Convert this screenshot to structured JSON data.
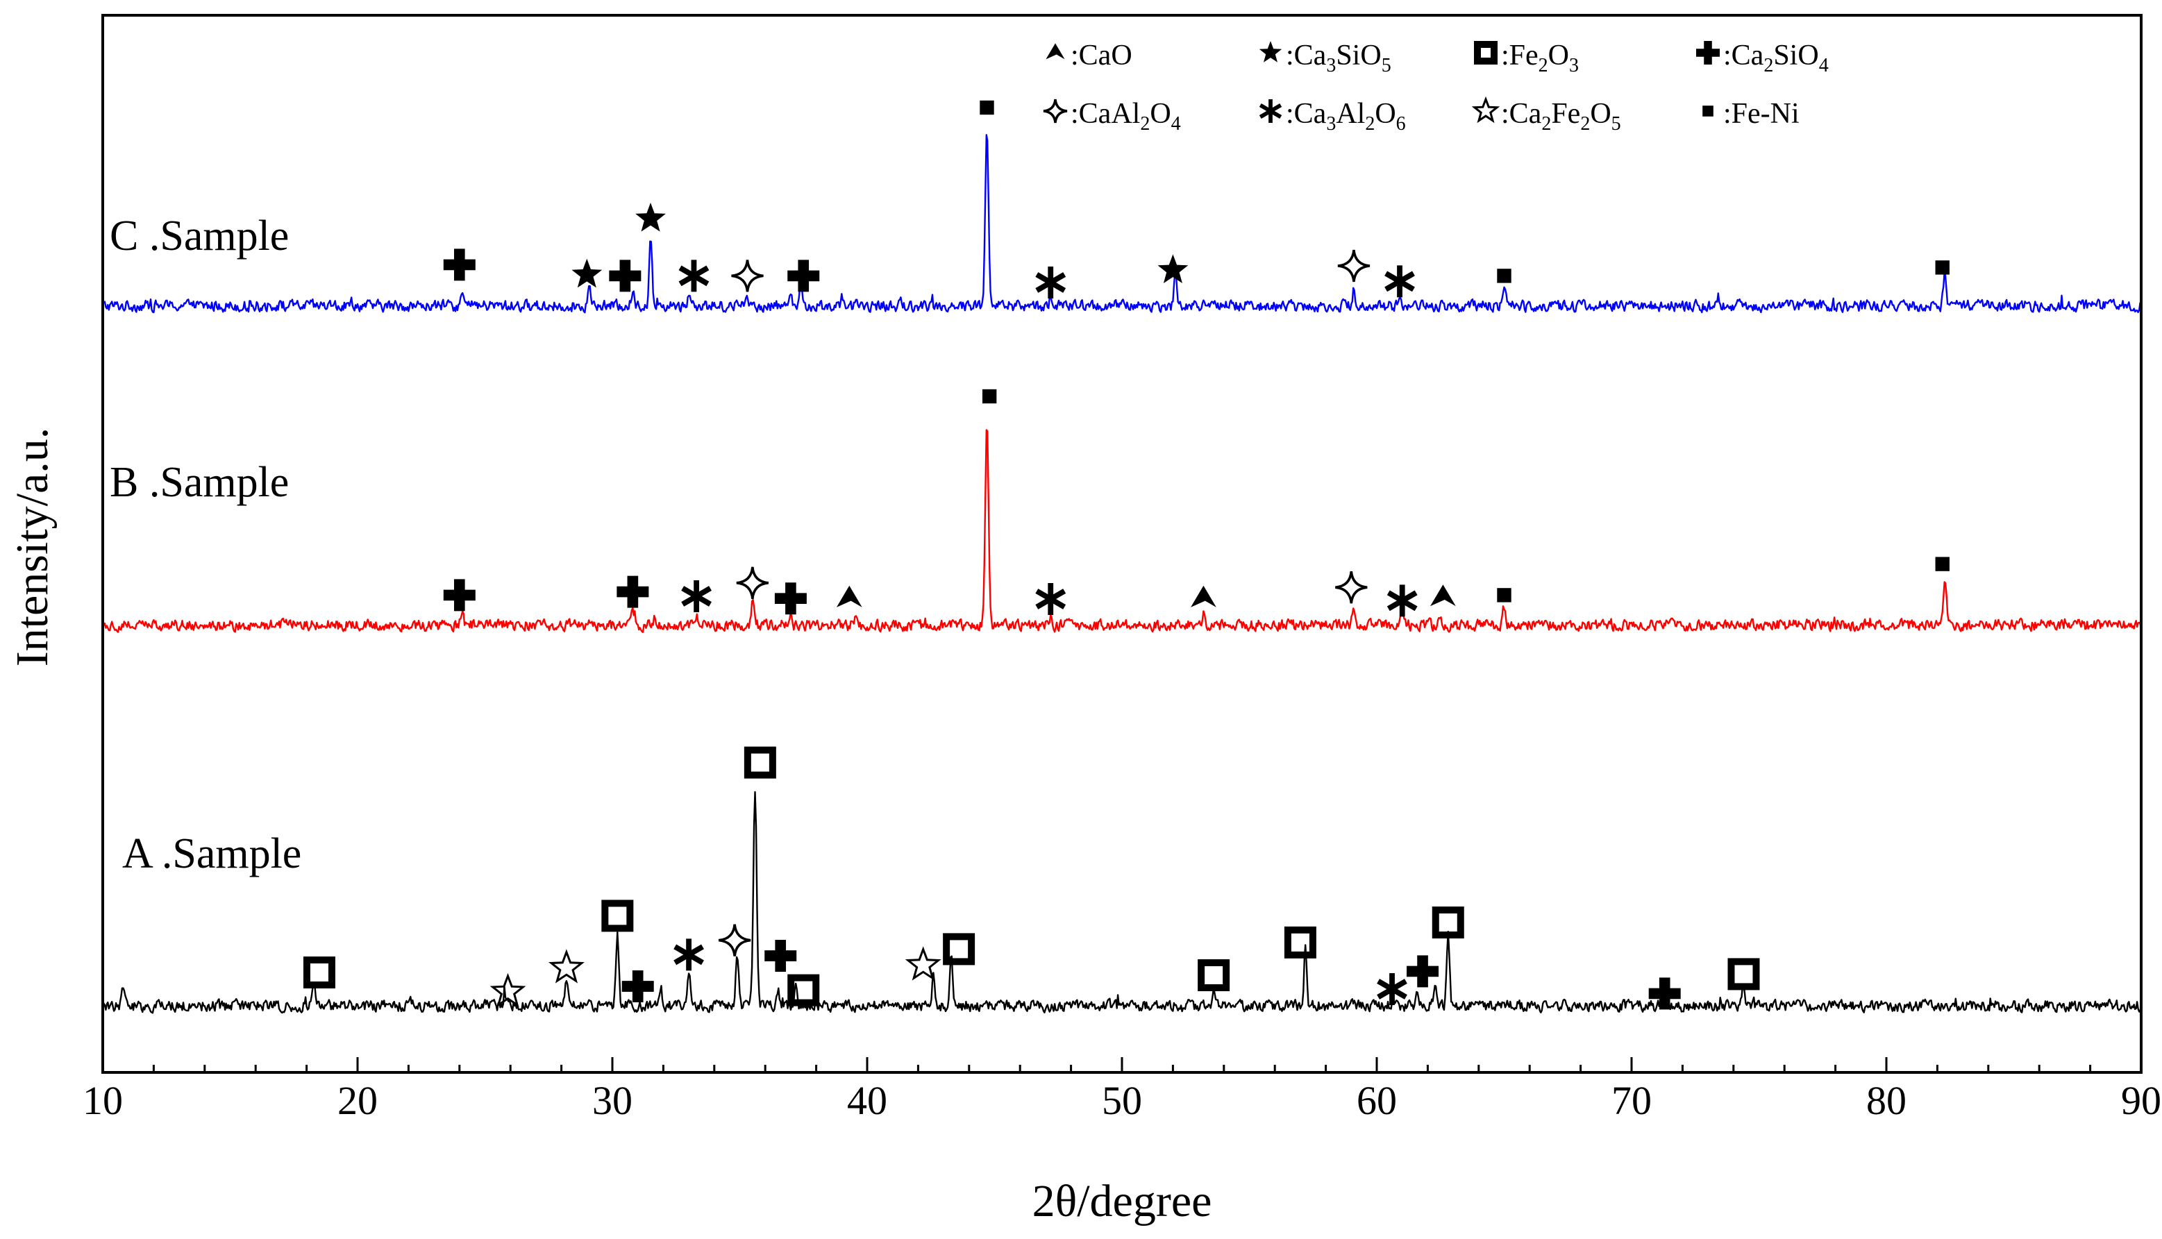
{
  "chart_data": {
    "type": "line",
    "title": "",
    "xlabel": "2θ/degree",
    "ylabel": "Intensity/a.u.",
    "xlim": [
      10,
      90
    ],
    "xticks": [
      10,
      20,
      30,
      40,
      50,
      60,
      70,
      80,
      90
    ],
    "yticks": [],
    "legend_position": "top-right",
    "legend": [
      {
        "marker": "cao",
        "label_parts": [
          ":CaO"
        ]
      },
      {
        "marker": "ca3sio5",
        "label_parts": [
          ":Ca",
          "3",
          "SiO",
          "5"
        ]
      },
      {
        "marker": "fe2o3",
        "label_parts": [
          ":Fe",
          "2",
          "O",
          "3"
        ]
      },
      {
        "marker": "ca2sio4",
        "label_parts": [
          ":Ca",
          "2",
          "SiO",
          "4"
        ]
      },
      {
        "marker": "caal2o4",
        "label_parts": [
          ":CaAl",
          "2",
          "O",
          "4"
        ]
      },
      {
        "marker": "ca3al2o6",
        "label_parts": [
          ":Ca",
          "3",
          "Al",
          "2",
          "O",
          "6"
        ]
      },
      {
        "marker": "ca2fe2o5",
        "label_parts": [
          ":Ca",
          "2",
          "Fe",
          "2",
          "O",
          "5"
        ]
      },
      {
        "marker": "feni",
        "label_parts": [
          ":Fe-Ni"
        ]
      }
    ],
    "series": [
      {
        "name": "C .Sample",
        "color": "#0000ff",
        "baseline": 0.18,
        "peaks": [
          [
            24.1,
            0.22
          ],
          [
            29.1,
            0.3
          ],
          [
            30.8,
            0.25
          ],
          [
            31.5,
            1.25
          ],
          [
            33.0,
            0.2
          ],
          [
            35.3,
            0.2
          ],
          [
            37.0,
            0.32
          ],
          [
            37.4,
            0.3
          ],
          [
            44.7,
            3.2
          ],
          [
            47.2,
            0.15
          ],
          [
            52.1,
            0.55
          ],
          [
            59.1,
            0.3
          ],
          [
            60.9,
            0.16
          ],
          [
            65.0,
            0.34
          ],
          [
            82.3,
            0.63
          ]
        ],
        "markers": [
          {
            "x": 24.0,
            "y": 0.92,
            "type": "ca2sio4"
          },
          {
            "x": 31.5,
            "y": 1.75,
            "type": "ca3sio5"
          },
          {
            "x": 29.0,
            "y": 0.74,
            "type": "ca3sio5"
          },
          {
            "x": 30.5,
            "y": 0.72,
            "type": "ca2sio4"
          },
          {
            "x": 33.2,
            "y": 0.72,
            "type": "ca3al2o6"
          },
          {
            "x": 35.3,
            "y": 0.72,
            "type": "caal2o4"
          },
          {
            "x": 37.5,
            "y": 0.72,
            "type": "ca2sio4"
          },
          {
            "x": 44.7,
            "y": 3.75,
            "type": "feni"
          },
          {
            "x": 47.2,
            "y": 0.6,
            "type": "ca3al2o6"
          },
          {
            "x": 52.0,
            "y": 0.82,
            "type": "ca3sio5"
          },
          {
            "x": 59.1,
            "y": 0.9,
            "type": "caal2o4"
          },
          {
            "x": 60.9,
            "y": 0.62,
            "type": "ca3al2o6"
          },
          {
            "x": 65.0,
            "y": 0.72,
            "type": "feni"
          },
          {
            "x": 82.2,
            "y": 0.87,
            "type": "feni"
          }
        ]
      },
      {
        "name": "B .Sample",
        "color": "#ff0000",
        "baseline": 0.18,
        "peaks": [
          [
            24.1,
            0.2
          ],
          [
            30.8,
            0.3
          ],
          [
            33.3,
            0.2
          ],
          [
            35.5,
            0.44
          ],
          [
            37.0,
            0.26
          ],
          [
            39.5,
            0.12
          ],
          [
            44.7,
            3.8
          ],
          [
            47.2,
            0.2
          ],
          [
            53.2,
            0.18
          ],
          [
            59.1,
            0.36
          ],
          [
            61.0,
            0.18
          ],
          [
            62.5,
            0.18
          ],
          [
            65.0,
            0.32
          ],
          [
            82.3,
            0.9
          ]
        ],
        "markers": [
          {
            "x": 24.0,
            "y": 0.72,
            "type": "ca2sio4"
          },
          {
            "x": 30.8,
            "y": 0.78,
            "type": "ca2sio4"
          },
          {
            "x": 33.3,
            "y": 0.7,
            "type": "ca3al2o6"
          },
          {
            "x": 35.5,
            "y": 0.94,
            "type": "caal2o4"
          },
          {
            "x": 37.0,
            "y": 0.66,
            "type": "ca2sio4"
          },
          {
            "x": 39.3,
            "y": 0.66,
            "type": "cao"
          },
          {
            "x": 44.8,
            "y": 4.3,
            "type": "feni"
          },
          {
            "x": 47.2,
            "y": 0.65,
            "type": "ca3al2o6"
          },
          {
            "x": 53.2,
            "y": 0.66,
            "type": "cao"
          },
          {
            "x": 59.0,
            "y": 0.86,
            "type": "caal2o4"
          },
          {
            "x": 61.0,
            "y": 0.62,
            "type": "ca3al2o6"
          },
          {
            "x": 62.6,
            "y": 0.68,
            "type": "cao"
          },
          {
            "x": 65.0,
            "y": 0.72,
            "type": "feni"
          },
          {
            "x": 82.2,
            "y": 1.28,
            "type": "feni"
          }
        ]
      },
      {
        "name": "A .Sample",
        "color": "#000000",
        "baseline": 0.2,
        "peaks": [
          [
            10.8,
            0.3
          ],
          [
            18.3,
            0.37
          ],
          [
            25.8,
            0.22
          ],
          [
            28.2,
            0.46
          ],
          [
            30.2,
            1.34
          ],
          [
            31.9,
            0.3
          ],
          [
            33.0,
            0.7
          ],
          [
            34.9,
            0.9
          ],
          [
            35.6,
            3.9
          ],
          [
            36.5,
            0.3
          ],
          [
            37.2,
            0.4
          ],
          [
            42.6,
            0.58
          ],
          [
            43.3,
            1.0
          ],
          [
            53.6,
            0.35
          ],
          [
            57.2,
            1.02
          ],
          [
            60.8,
            0.18
          ],
          [
            61.6,
            0.3
          ],
          [
            62.3,
            0.4
          ],
          [
            62.8,
            1.32
          ],
          [
            71.3,
            0.2
          ],
          [
            74.4,
            0.37
          ]
        ],
        "markers": [
          {
            "x": 18.5,
            "y": 0.8,
            "type": "fe2o3"
          },
          {
            "x": 25.9,
            "y": 0.45,
            "type": "ca2fe2o5"
          },
          {
            "x": 28.2,
            "y": 0.88,
            "type": "ca2fe2o5"
          },
          {
            "x": 30.2,
            "y": 1.82,
            "type": "fe2o3"
          },
          {
            "x": 31.0,
            "y": 0.55,
            "type": "ca2sio4"
          },
          {
            "x": 33.0,
            "y": 1.12,
            "type": "ca3al2o6"
          },
          {
            "x": 34.8,
            "y": 1.38,
            "type": "caal2o4"
          },
          {
            "x": 35.8,
            "y": 4.58,
            "type": "fe2o3"
          },
          {
            "x": 36.6,
            "y": 1.1,
            "type": "ca2sio4"
          },
          {
            "x": 37.5,
            "y": 0.48,
            "type": "fe2o3"
          },
          {
            "x": 42.2,
            "y": 0.93,
            "type": "ca2fe2o5"
          },
          {
            "x": 43.6,
            "y": 1.22,
            "type": "fe2o3"
          },
          {
            "x": 53.6,
            "y": 0.75,
            "type": "fe2o3"
          },
          {
            "x": 57.0,
            "y": 1.34,
            "type": "fe2o3"
          },
          {
            "x": 60.6,
            "y": 0.5,
            "type": "ca3al2o6"
          },
          {
            "x": 61.8,
            "y": 0.82,
            "type": "ca2sio4"
          },
          {
            "x": 62.8,
            "y": 1.7,
            "type": "fe2o3"
          },
          {
            "x": 71.3,
            "y": 0.42,
            "type": "ca2sio4"
          },
          {
            "x": 74.4,
            "y": 0.77,
            "type": "fe2o3"
          }
        ]
      }
    ]
  }
}
